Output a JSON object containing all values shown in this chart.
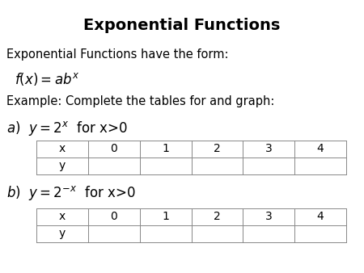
{
  "title": "Exponential Functions",
  "title_fontsize": 14,
  "title_fontweight": "bold",
  "bg_color": "#ffffff",
  "text_color": "#000000",
  "line1": "Exponential Functions have the form:",
  "line1_fontsize": 10.5,
  "formula": "$f(x) = ab^x$",
  "formula_fontsize": 12,
  "line3": "Example: Complete the tables for and graph:",
  "line3_fontsize": 10.5,
  "part_a_label": "$a)$  $y = 2^x$  for x>0",
  "part_b_label": "$b)$  $y = 2^{-x}$  for x>0",
  "part_label_fontsize": 12,
  "table_headers": [
    "x",
    "0",
    "1",
    "2",
    "3",
    "4"
  ],
  "table_row2": [
    "y",
    "",
    "",
    "",
    "",
    ""
  ],
  "table_fontsize": 10
}
